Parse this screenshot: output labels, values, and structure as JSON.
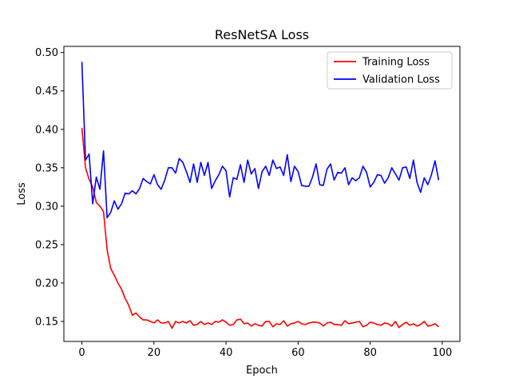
{
  "chart_data": {
    "type": "line",
    "title": "ResNetSA Loss",
    "xlabel": "Epoch",
    "ylabel": "Loss",
    "xlim": [
      -5,
      104.9
    ],
    "ylim": [
      0.124,
      0.508
    ],
    "xticks": [
      0,
      20,
      40,
      60,
      80,
      100
    ],
    "yticks": [
      0.15,
      0.2,
      0.25,
      0.3,
      0.35,
      0.4,
      0.45,
      0.5
    ],
    "xtick_labels": [
      "0",
      "20",
      "40",
      "60",
      "80",
      "100"
    ],
    "ytick_labels": [
      "0.15",
      "0.20",
      "0.25",
      "0.30",
      "0.35",
      "0.40",
      "0.45",
      "0.50"
    ],
    "grid": false,
    "legend_position": "top-right",
    "x": [
      0,
      1,
      2,
      3,
      4,
      5,
      6,
      7,
      8,
      9,
      10,
      11,
      12,
      13,
      14,
      15,
      16,
      17,
      18,
      19,
      20,
      21,
      22,
      23,
      24,
      25,
      26,
      27,
      28,
      29,
      30,
      31,
      32,
      33,
      34,
      35,
      36,
      37,
      38,
      39,
      40,
      41,
      42,
      43,
      44,
      45,
      46,
      47,
      48,
      49,
      50,
      51,
      52,
      53,
      54,
      55,
      56,
      57,
      58,
      59,
      60,
      61,
      62,
      63,
      64,
      65,
      66,
      67,
      68,
      69,
      70,
      71,
      72,
      73,
      74,
      75,
      76,
      77,
      78,
      79,
      80,
      81,
      82,
      83,
      84,
      85,
      86,
      87,
      88,
      89,
      90,
      91,
      92,
      93,
      94,
      95,
      96,
      97,
      98,
      99
    ],
    "series": [
      {
        "name": "Training Loss",
        "color": "#ff0000",
        "values": [
          0.402,
          0.35,
          0.335,
          0.325,
          0.305,
          0.3,
          0.293,
          0.243,
          0.219,
          0.21,
          0.2,
          0.192,
          0.18,
          0.171,
          0.158,
          0.161,
          0.156,
          0.152,
          0.152,
          0.15,
          0.148,
          0.152,
          0.148,
          0.148,
          0.15,
          0.141,
          0.15,
          0.148,
          0.15,
          0.148,
          0.151,
          0.145,
          0.146,
          0.15,
          0.146,
          0.148,
          0.146,
          0.15,
          0.149,
          0.152,
          0.149,
          0.145,
          0.146,
          0.152,
          0.153,
          0.147,
          0.148,
          0.144,
          0.147,
          0.145,
          0.144,
          0.15,
          0.15,
          0.143,
          0.147,
          0.146,
          0.151,
          0.144,
          0.147,
          0.148,
          0.15,
          0.147,
          0.146,
          0.148,
          0.149,
          0.149,
          0.148,
          0.144,
          0.148,
          0.149,
          0.146,
          0.146,
          0.145,
          0.151,
          0.147,
          0.148,
          0.149,
          0.15,
          0.143,
          0.145,
          0.149,
          0.148,
          0.146,
          0.145,
          0.148,
          0.147,
          0.144,
          0.15,
          0.142,
          0.146,
          0.149,
          0.145,
          0.147,
          0.144,
          0.146,
          0.15,
          0.144,
          0.145,
          0.147,
          0.143
        ]
      },
      {
        "name": "Validation Loss",
        "color": "#0000ff",
        "values": [
          0.488,
          0.36,
          0.368,
          0.303,
          0.338,
          0.322,
          0.372,
          0.285,
          0.292,
          0.307,
          0.296,
          0.303,
          0.317,
          0.316,
          0.32,
          0.316,
          0.323,
          0.336,
          0.332,
          0.329,
          0.341,
          0.328,
          0.322,
          0.334,
          0.35,
          0.35,
          0.343,
          0.362,
          0.357,
          0.345,
          0.331,
          0.355,
          0.331,
          0.357,
          0.34,
          0.357,
          0.323,
          0.333,
          0.341,
          0.352,
          0.346,
          0.312,
          0.337,
          0.335,
          0.354,
          0.331,
          0.36,
          0.342,
          0.349,
          0.323,
          0.345,
          0.352,
          0.34,
          0.36,
          0.349,
          0.351,
          0.34,
          0.367,
          0.332,
          0.352,
          0.345,
          0.327,
          0.326,
          0.326,
          0.338,
          0.355,
          0.328,
          0.327,
          0.348,
          0.355,
          0.334,
          0.344,
          0.343,
          0.35,
          0.328,
          0.337,
          0.333,
          0.337,
          0.352,
          0.344,
          0.325,
          0.331,
          0.341,
          0.34,
          0.33,
          0.337,
          0.35,
          0.342,
          0.334,
          0.35,
          0.351,
          0.336,
          0.36,
          0.331,
          0.318,
          0.337,
          0.328,
          0.341,
          0.359,
          0.334
        ]
      }
    ]
  }
}
